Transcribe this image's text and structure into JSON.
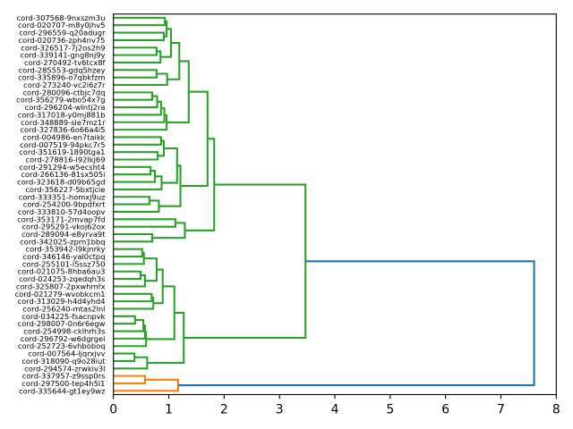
{
  "chart_data": {
    "type": "line",
    "variant": "dendrogram",
    "orientation": "left",
    "title": "",
    "xlabel": "",
    "ylabel": "",
    "xlim": [
      0,
      8
    ],
    "x_ticks": [
      0,
      1,
      2,
      3,
      4,
      5,
      6,
      7,
      8
    ],
    "x_tick_labels": [
      "0",
      "1",
      "2",
      "3",
      "4",
      "5",
      "6",
      "7",
      "8"
    ],
    "grid": false,
    "legend": null,
    "colors": {
      "C0": "#1f77b4",
      "C1": "#ff7f0e",
      "C2": "#2ca02c"
    },
    "leaves": [
      "cord-307568-9nxszm3u",
      "cord-020707-m8y0jhv5",
      "cord-296559-q20adugr",
      "cord-020736-zph4nv75",
      "cord-326517-7j2os2h9",
      "cord-339141-gng8nj9y",
      "cord-270492-tv6tcx8f",
      "cord-285553-gdq5hzey",
      "cord-335896-o7qbkfzm",
      "cord-273240-vc2i6z7r",
      "cord-280096-ctbjc7dq",
      "cord-356279-wbo54x7g",
      "cord-296204-wlntj2ra",
      "cord-317018-y0mj881b",
      "cord-348889-sle7mz1r",
      "cord-327836-6o66a4i5",
      "cord-004986-en7taikk",
      "cord-007519-94pkc7r5",
      "cord-351619-1890tga1",
      "cord-278816-l92lkj69",
      "cord-291294-w5ecsht4",
      "cord-266136-81sx505i",
      "cord-323618-d09b65gd",
      "cord-356227-5bxtjcie",
      "cord-333351-homxj9uz",
      "cord-254200-9bpdfxrt",
      "cord-333810-57d4oopv",
      "cord-353171-2mvap7fd",
      "cord-295291-vkoj62ox",
      "cord-289094-e8yrva9t",
      "cord-342025-zprn1bbq",
      "cord-353942-l9kjnrky",
      "cord-346146-yal0ctpq",
      "cord-255101-l5ssz750",
      "cord-021075-8hba6au3",
      "cord-024253-zqedqh3s",
      "cord-325807-2pxwhmfx",
      "cord-021279-wvobkcm1",
      "cord-313029-h4d4yhd4",
      "cord-256240-mtas2lnl",
      "cord-034225-fsacnpvk",
      "cord-298007-0n6r6egw",
      "cord-254998-cklhrh3s",
      "cord-296792-w6dgrgei",
      "cord-252723-6vhboboq",
      "cord-007564-ljqrxjvv",
      "cord-318090-q9o28iut",
      "cord-294574-zrwkiv3l",
      "cord-337957-z9ssp0rs",
      "cord-297500-tep4h5l1",
      "cord-335644-gt1ey9wz"
    ],
    "merges": [
      {
        "a": 0,
        "b": 1,
        "h": 0.93,
        "c": "C2"
      },
      {
        "a": 2,
        "b": 3,
        "h": 0.91,
        "c": "C2"
      },
      {
        "a": 51,
        "b": 52,
        "h": 0.96,
        "c": "C2"
      },
      {
        "a": 4,
        "b": 5,
        "h": 0.78,
        "c": "C2"
      },
      {
        "a": 54,
        "b": 6,
        "h": 0.85,
        "c": "C2"
      },
      {
        "a": 53,
        "b": 55,
        "h": 1.04,
        "c": "C2"
      },
      {
        "a": 7,
        "b": 8,
        "h": 0.78,
        "c": "C2"
      },
      {
        "a": 57,
        "b": 9,
        "h": 0.97,
        "c": "C2"
      },
      {
        "a": 56,
        "b": 58,
        "h": 1.19,
        "c": "C2"
      },
      {
        "a": 10,
        "b": 11,
        "h": 0.7,
        "c": "C2"
      },
      {
        "a": 60,
        "b": 12,
        "h": 0.79,
        "c": "C2"
      },
      {
        "a": 61,
        "b": 13,
        "h": 0.86,
        "c": "C2"
      },
      {
        "a": 62,
        "b": 14,
        "h": 0.92,
        "c": "C2"
      },
      {
        "a": 63,
        "b": 15,
        "h": 0.96,
        "c": "C2"
      },
      {
        "a": 59,
        "b": 64,
        "h": 1.36,
        "c": "C2"
      },
      {
        "a": 16,
        "b": 17,
        "h": 0.86,
        "c": "C2"
      },
      {
        "a": 18,
        "b": 19,
        "h": 0.8,
        "c": "C2"
      },
      {
        "a": 66,
        "b": 67,
        "h": 0.91,
        "c": "C2"
      },
      {
        "a": 20,
        "b": 21,
        "h": 0.67,
        "c": "C2"
      },
      {
        "a": 69,
        "b": 22,
        "h": 0.75,
        "c": "C2"
      },
      {
        "a": 70,
        "b": 23,
        "h": 0.87,
        "c": "C2"
      },
      {
        "a": 68,
        "b": 71,
        "h": 1.15,
        "c": "C2"
      },
      {
        "a": 24,
        "b": 25,
        "h": 0.65,
        "c": "C2"
      },
      {
        "a": 73,
        "b": 26,
        "h": 0.82,
        "c": "C2"
      },
      {
        "a": 72,
        "b": 74,
        "h": 1.21,
        "c": "C2"
      },
      {
        "a": 65,
        "b": 75,
        "h": 1.7,
        "c": "C2"
      },
      {
        "a": 27,
        "b": 28,
        "h": 1.12,
        "c": "C2"
      },
      {
        "a": 29,
        "b": 30,
        "h": 0.7,
        "c": "C2"
      },
      {
        "a": 77,
        "b": 78,
        "h": 1.29,
        "c": "C2"
      },
      {
        "a": 76,
        "b": 79,
        "h": 1.82,
        "c": "C2"
      },
      {
        "a": 31,
        "b": 32,
        "h": 0.52,
        "c": "C2"
      },
      {
        "a": 81,
        "b": 33,
        "h": 0.55,
        "c": "C2"
      },
      {
        "a": 34,
        "b": 35,
        "h": 0.49,
        "c": "C2"
      },
      {
        "a": 83,
        "b": 36,
        "h": 0.57,
        "c": "C2"
      },
      {
        "a": 82,
        "b": 84,
        "h": 0.78,
        "c": "C2"
      },
      {
        "a": 37,
        "b": 38,
        "h": 0.69,
        "c": "C2"
      },
      {
        "a": 86,
        "b": 39,
        "h": 0.72,
        "c": "C2"
      },
      {
        "a": 85,
        "b": 87,
        "h": 0.89,
        "c": "C2"
      },
      {
        "a": 40,
        "b": 41,
        "h": 0.39,
        "c": "C2"
      },
      {
        "a": 89,
        "b": 42,
        "h": 0.54,
        "c": "C2"
      },
      {
        "a": 90,
        "b": 43,
        "h": 0.57,
        "c": "C2"
      },
      {
        "a": 91,
        "b": 44,
        "h": 0.59,
        "c": "C2"
      },
      {
        "a": 88,
        "b": 92,
        "h": 1.1,
        "c": "C2"
      },
      {
        "a": 45,
        "b": 46,
        "h": 0.38,
        "c": "C2"
      },
      {
        "a": 94,
        "b": 47,
        "h": 0.61,
        "c": "C2"
      },
      {
        "a": 93,
        "b": 95,
        "h": 1.27,
        "c": "C2"
      },
      {
        "a": 80,
        "b": 96,
        "h": 3.47,
        "c": "C2"
      },
      {
        "a": 48,
        "b": 49,
        "h": 0.57,
        "c": "C1"
      },
      {
        "a": 98,
        "b": 50,
        "h": 1.17,
        "c": "C1"
      },
      {
        "a": 97,
        "b": 99,
        "h": 7.6,
        "c": "C0"
      }
    ]
  }
}
